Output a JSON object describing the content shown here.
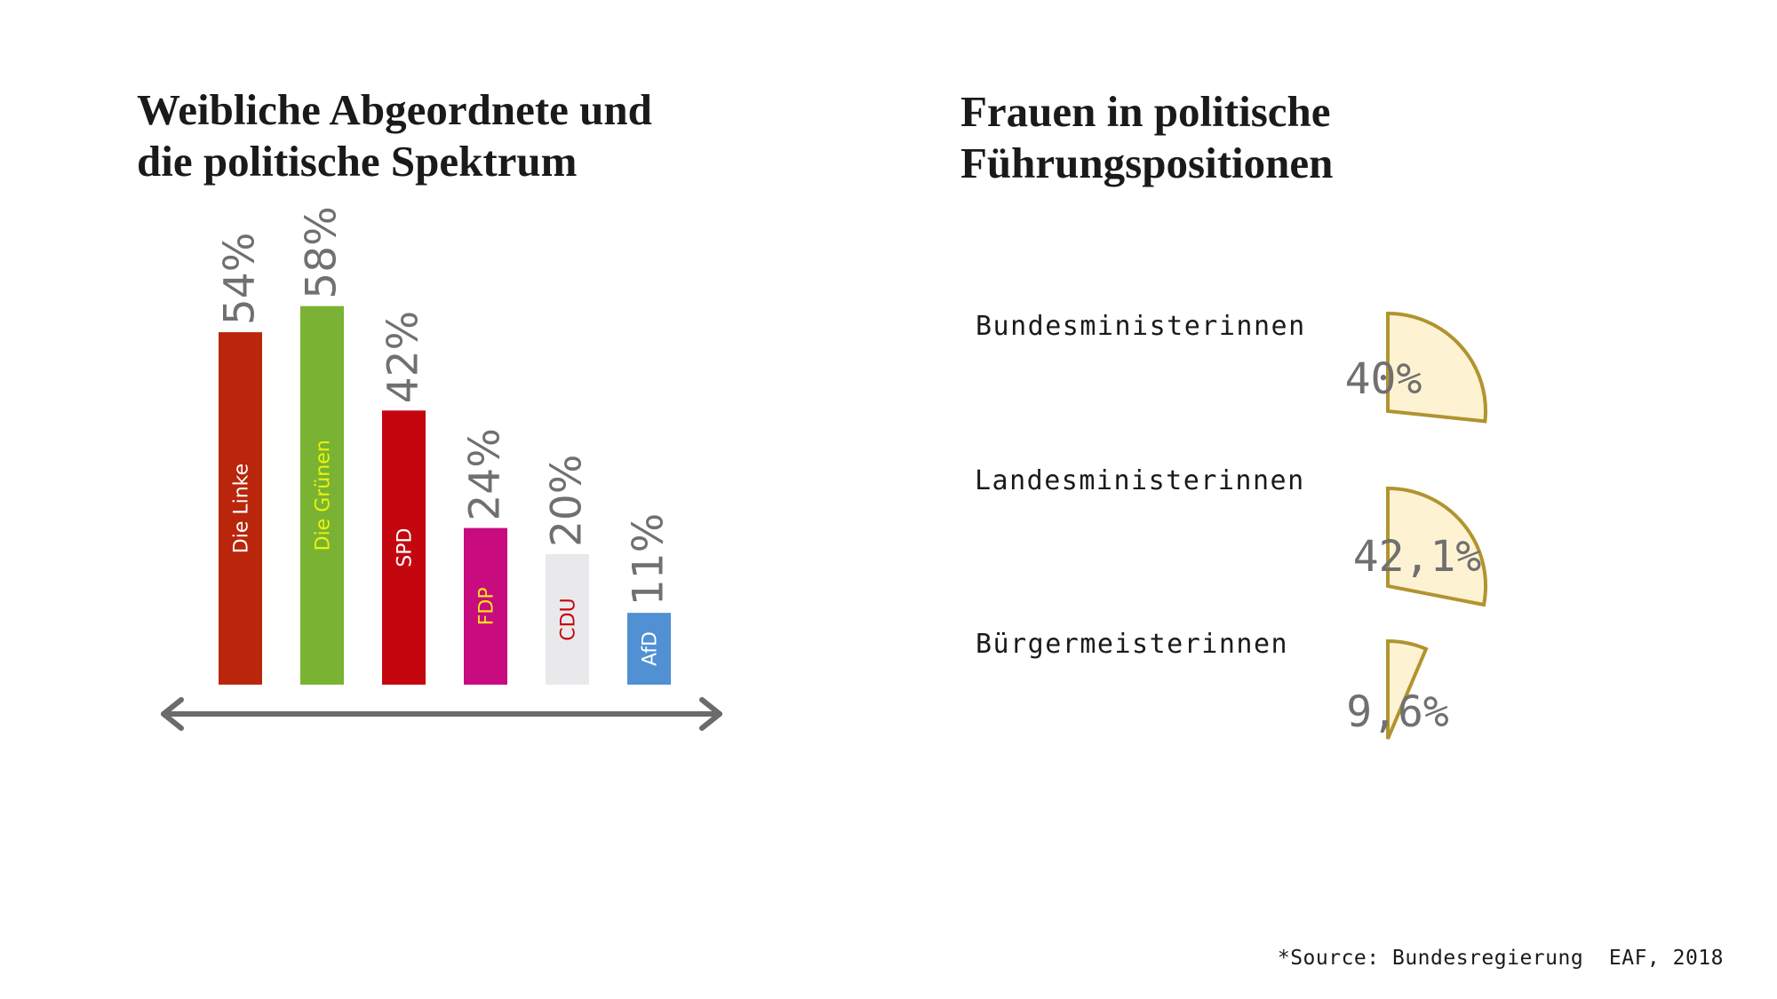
{
  "left_title": [
    "Weibliche Abgeordnete und",
    "die politische Spektrum"
  ],
  "right_title": [
    "Frauen in politische",
    "Führungspositionen"
  ],
  "source": "*Source: Bundesregierung  EAF, 2018",
  "colors": {
    "value_text": "#707070",
    "arrow": "#6b6b6b",
    "wedge_fill": "#fdf3d3",
    "wedge_stroke": "#b1942f"
  },
  "chart_data": [
    {
      "type": "bar",
      "title": "Weibliche Abgeordnete und die politische Spektrum",
      "categories": [
        "Die Linke",
        "Die Grünen",
        "SPD",
        "FDP",
        "CDU",
        "AfD"
      ],
      "values": [
        54,
        58,
        42,
        24,
        20,
        11
      ],
      "value_labels": [
        "54%",
        "58%",
        "42%",
        "24%",
        "20%",
        "11%"
      ],
      "unit": "%",
      "bar_colors": [
        "#b9260c",
        "#7ab233",
        "#c4060f",
        "#c80b7e",
        "#e9e9ec",
        "#5190d3"
      ],
      "label_colors": [
        "#ffffff",
        "#e8f40a",
        "#ffffff",
        "#f6e41c",
        "#c4060f",
        "#ffffff"
      ],
      "axis": "double-headed arrow (political spectrum, left to right)"
    },
    {
      "type": "pie",
      "title": "Frauen in politische Führungspositionen",
      "categories": [
        "Bundesministerinnen",
        "Landesministerinnen",
        "Bürgermeisterinnen"
      ],
      "values": [
        40,
        42.1,
        9.6
      ],
      "value_labels": [
        "40%",
        "42,1%",
        "9,6%"
      ],
      "unit": "%",
      "style": "single wedge sector per row"
    }
  ]
}
